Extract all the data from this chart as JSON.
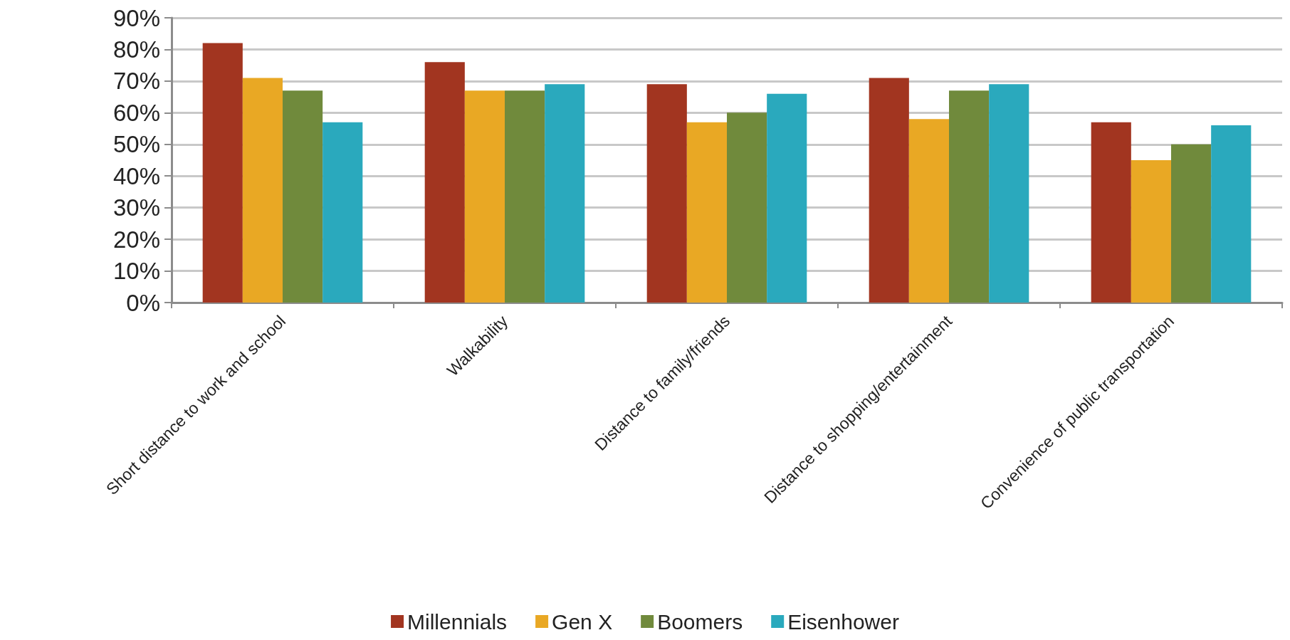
{
  "chart_data": {
    "type": "bar",
    "categories": [
      "Short distance to work and school",
      "Walkability",
      "Distance to family/friends",
      "Distance to shopping/entertainment",
      "Convenience of public transportation"
    ],
    "series": [
      {
        "name": "Millennials",
        "color": "#a23520",
        "values": [
          82,
          76,
          69,
          71,
          57
        ]
      },
      {
        "name": "Gen X",
        "color": "#e9a824",
        "values": [
          71,
          67,
          57,
          58,
          45
        ]
      },
      {
        "name": "Boomers",
        "color": "#708a3c",
        "values": [
          67,
          67,
          60,
          67,
          50
        ]
      },
      {
        "name": "Eisenhower",
        "color": "#2aa9bd",
        "values": [
          57,
          69,
          66,
          69,
          56
        ]
      }
    ],
    "ylim": [
      0,
      90
    ],
    "yticks": [
      {
        "value": 0,
        "label": "0%"
      },
      {
        "value": 10,
        "label": "10%"
      },
      {
        "value": 20,
        "label": "20%"
      },
      {
        "value": 30,
        "label": "30%"
      },
      {
        "value": 40,
        "label": "40%"
      },
      {
        "value": 50,
        "label": "50%"
      },
      {
        "value": 60,
        "label": "60%"
      },
      {
        "value": 70,
        "label": "70%"
      },
      {
        "value": 80,
        "label": "80%"
      },
      {
        "value": 90,
        "label": "90%"
      }
    ],
    "grid": "y",
    "legend": "bottom"
  }
}
